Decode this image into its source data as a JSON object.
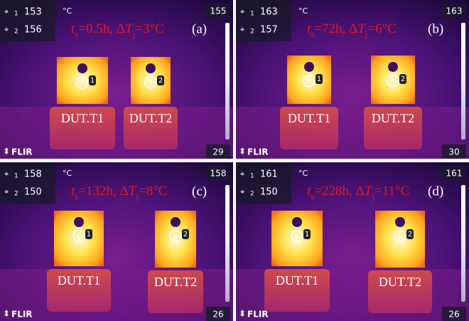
{
  "panels": [
    {
      "spots": [
        {
          "id": "1",
          "value": 153
        },
        {
          "id": "2",
          "value": 156
        }
      ],
      "unit": "°C",
      "scale_max": 155,
      "scale_min": 29,
      "brand": "FLIR",
      "caption": {
        "t": "t",
        "sub_s": "s",
        "mid": "=0.5h, Δ",
        "T": "T",
        "sub_j": "j",
        "end": "=3°C"
      },
      "label": "(a)",
      "dut_labels": [
        "DUT.T1",
        "DUT.T2"
      ],
      "markers": [
        "1",
        "2"
      ]
    },
    {
      "spots": [
        {
          "id": "1",
          "value": 163
        },
        {
          "id": "2",
          "value": 157
        }
      ],
      "unit": "°C",
      "scale_max": 163,
      "scale_min": 30,
      "brand": "FLIR",
      "caption": {
        "t": "t",
        "sub_s": "s",
        "mid": "=72h, Δ",
        "T": "T",
        "sub_j": "j",
        "end": "=6°C"
      },
      "label": "(b)",
      "dut_labels": [
        "DUT.T1",
        "DUT.T2"
      ],
      "markers": [
        "1",
        "2"
      ]
    },
    {
      "spots": [
        {
          "id": "1",
          "value": 158
        },
        {
          "id": "2",
          "value": 150
        }
      ],
      "unit": "°C",
      "scale_max": 158,
      "scale_min": 26,
      "brand": "FLIR",
      "caption": {
        "t": "t",
        "sub_s": "s",
        "mid": "=132h, Δ",
        "T": "T",
        "sub_j": "j",
        "end": "=8°C"
      },
      "label": "(c)",
      "dut_labels": [
        "DUT.T1",
        "DUT.T2"
      ],
      "markers": [
        "1",
        "2"
      ]
    },
    {
      "spots": [
        {
          "id": "1",
          "value": 161
        },
        {
          "id": "2",
          "value": 150
        }
      ],
      "unit": "°C",
      "scale_max": 161,
      "scale_min": 26,
      "brand": "FLIR",
      "caption": {
        "t": "t",
        "sub_s": "s",
        "mid": "=228h, Δ",
        "T": "T",
        "sub_j": "j",
        "end": "=11°C"
      },
      "label": "(d)",
      "dut_labels": [
        "DUT.T1",
        "DUT.T2"
      ],
      "markers": [
        "1",
        "2"
      ]
    }
  ]
}
